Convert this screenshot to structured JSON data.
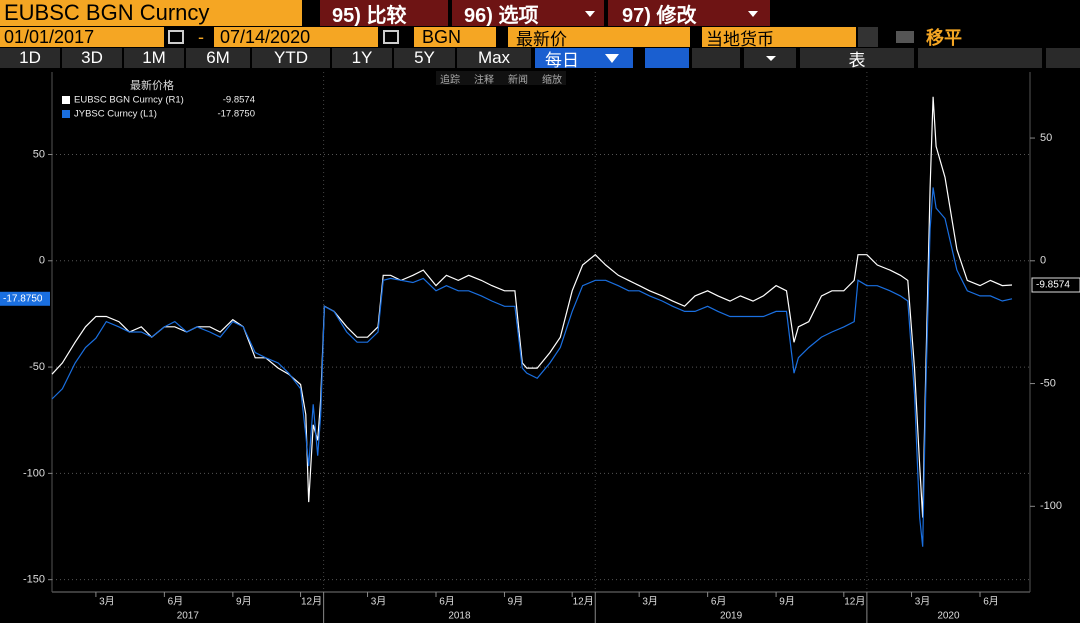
{
  "toolbar": {
    "ticker": "EUBSC BGN Curncy",
    "menu": [
      "95) 比较",
      "96) 选项",
      "97) 修改"
    ],
    "start_date": "01/01/2017",
    "separator": "-",
    "end_date": "07/14/2020",
    "pricing": "BGN",
    "field": "最新价",
    "currency": "当地货币",
    "smooth": "移平",
    "ranges": [
      "1D",
      "3D",
      "1M",
      "6M",
      "YTD",
      "1Y",
      "5Y",
      "Max"
    ],
    "frequency": "每日",
    "table": "表",
    "tools": [
      "追踪",
      "注释",
      "新闻",
      "缩放"
    ]
  },
  "chart_data": {
    "type": "line",
    "legend_title": "最新价格",
    "x": [
      "2017-01-01",
      "2017-01-15",
      "2017-02-01",
      "2017-02-15",
      "2017-03-01",
      "2017-03-15",
      "2017-04-01",
      "2017-04-15",
      "2017-05-01",
      "2017-05-15",
      "2017-06-01",
      "2017-06-15",
      "2017-07-01",
      "2017-07-15",
      "2017-08-01",
      "2017-08-15",
      "2017-09-01",
      "2017-09-15",
      "2017-10-01",
      "2017-10-15",
      "2017-11-01",
      "2017-11-15",
      "2017-12-01",
      "2017-12-08",
      "2017-12-12",
      "2017-12-18",
      "2017-12-24",
      "2017-12-28",
      "2018-01-02",
      "2018-01-15",
      "2018-02-01",
      "2018-02-15",
      "2018-03-01",
      "2018-03-15",
      "2018-03-22",
      "2018-04-01",
      "2018-04-15",
      "2018-05-01",
      "2018-05-15",
      "2018-06-01",
      "2018-06-15",
      "2018-07-01",
      "2018-07-15",
      "2018-08-01",
      "2018-08-15",
      "2018-09-01",
      "2018-09-15",
      "2018-09-25",
      "2018-10-01",
      "2018-10-15",
      "2018-11-01",
      "2018-11-15",
      "2018-12-01",
      "2018-12-15",
      "2019-01-01",
      "2019-01-15",
      "2019-02-01",
      "2019-02-15",
      "2019-03-01",
      "2019-03-15",
      "2019-04-01",
      "2019-04-15",
      "2019-05-01",
      "2019-05-15",
      "2019-06-01",
      "2019-06-15",
      "2019-07-01",
      "2019-07-15",
      "2019-08-01",
      "2019-08-15",
      "2019-09-01",
      "2019-09-15",
      "2019-09-25",
      "2019-10-01",
      "2019-10-15",
      "2019-11-01",
      "2019-11-15",
      "2019-12-01",
      "2019-12-15",
      "2019-12-20",
      "2020-01-01",
      "2020-01-15",
      "2020-02-01",
      "2020-02-15",
      "2020-02-25",
      "2020-03-05",
      "2020-03-12",
      "2020-03-16",
      "2020-03-20",
      "2020-03-26",
      "2020-03-30",
      "2020-04-03",
      "2020-04-15",
      "2020-05-01",
      "2020-05-15",
      "2020-06-01",
      "2020-06-15",
      "2020-07-01",
      "2020-07-14"
    ],
    "xlim": [
      "2017-01-01",
      "2020-07-14"
    ],
    "xticks": [
      {
        "value": "2017-03-01",
        "label": "3月"
      },
      {
        "value": "2017-06-01",
        "label": "6月"
      },
      {
        "value": "2017-09-01",
        "label": "9月"
      },
      {
        "value": "2017-12-01",
        "label": "12月"
      },
      {
        "value": "2018-03-01",
        "label": "3月"
      },
      {
        "value": "2018-06-01",
        "label": "6月"
      },
      {
        "value": "2018-09-01",
        "label": "9月"
      },
      {
        "value": "2018-12-01",
        "label": "12月"
      },
      {
        "value": "2019-03-01",
        "label": "3月"
      },
      {
        "value": "2019-06-01",
        "label": "6月"
      },
      {
        "value": "2019-09-01",
        "label": "9月"
      },
      {
        "value": "2019-12-01",
        "label": "12月"
      },
      {
        "value": "2020-03-01",
        "label": "3月"
      },
      {
        "value": "2020-06-01",
        "label": "6月"
      }
    ],
    "year_labels": [
      "2017",
      "2018",
      "2019",
      "2020"
    ],
    "ylim": [
      -155.8,
      88.8
    ],
    "yticks": [
      50,
      0,
      -50,
      -100,
      -150
    ],
    "y2lim": [
      -134.9,
      76.9
    ],
    "y2ticks": [
      50,
      0,
      -50,
      -100
    ],
    "grid": true,
    "series": [
      {
        "name": "JYBSC Curncy (L1)",
        "color": "#1a6fe0",
        "axis": "y",
        "last_value_label": "-17.8750",
        "values": [
          -65.0,
          -60.2,
          -48.1,
          -40.8,
          -36.4,
          -28.6,
          -31.1,
          -33.5,
          -33.5,
          -35.9,
          -31.1,
          -28.6,
          -33.5,
          -31.1,
          -33.5,
          -35.9,
          -28.6,
          -31.1,
          -43.2,
          -45.6,
          -48.1,
          -52.9,
          -60.2,
          -82.0,
          -96.6,
          -67.5,
          -91.7,
          -72.3,
          -21.4,
          -23.8,
          -33.5,
          -38.3,
          -38.3,
          -33.5,
          -9.2,
          -8.3,
          -9.2,
          -10.2,
          -8.3,
          -14.1,
          -11.7,
          -14.1,
          -14.1,
          -16.5,
          -18.9,
          -21.4,
          -21.4,
          -50.5,
          -52.9,
          -55.3,
          -48.1,
          -40.8,
          -23.8,
          -11.7,
          -9.2,
          -9.2,
          -11.7,
          -14.1,
          -14.1,
          -16.5,
          -18.9,
          -21.4,
          -23.8,
          -23.8,
          -21.4,
          -23.8,
          -26.2,
          -26.2,
          -26.2,
          -26.2,
          -23.8,
          -23.8,
          -52.9,
          -45.6,
          -40.8,
          -35.9,
          -33.5,
          -31.1,
          -28.6,
          -9.2,
          -11.7,
          -11.7,
          -14.1,
          -16.5,
          -18.9,
          -62.6,
          -120.9,
          -134.5,
          -62.6,
          15.0,
          34.5,
          24.8,
          19.9,
          -4.4,
          -14.1,
          -16.5,
          -16.5,
          -18.9,
          -17.875
        ]
      },
      {
        "name": "EUBSC BGN Curncy (R1)",
        "color": "#ffffff",
        "axis": "y2",
        "last_value_label": "-9.8574",
        "values": [
          -46.2,
          -41.6,
          -33.2,
          -26.9,
          -22.7,
          -22.7,
          -24.8,
          -29.0,
          -26.9,
          -31.1,
          -26.9,
          -26.9,
          -29.0,
          -26.9,
          -26.9,
          -29.0,
          -24.0,
          -26.9,
          -39.5,
          -39.5,
          -43.7,
          -46.2,
          -50.4,
          -62.6,
          -98.3,
          -66.8,
          -73.1,
          -56.3,
          -18.5,
          -20.6,
          -26.9,
          -31.1,
          -31.1,
          -26.9,
          -5.9,
          -5.9,
          -8.0,
          -5.9,
          -3.8,
          -10.1,
          -5.9,
          -8.0,
          -5.9,
          -8.0,
          -10.1,
          -12.2,
          -12.2,
          -41.6,
          -43.7,
          -43.7,
          -37.4,
          -31.1,
          -12.2,
          -1.7,
          2.5,
          -1.7,
          -5.9,
          -8.0,
          -10.1,
          -12.2,
          -14.3,
          -16.4,
          -18.5,
          -14.3,
          -12.2,
          -14.3,
          -16.4,
          -14.3,
          -16.4,
          -14.3,
          -10.1,
          -12.2,
          -33.2,
          -26.9,
          -24.8,
          -14.3,
          -12.2,
          -12.2,
          -8.0,
          2.5,
          2.5,
          -1.7,
          -3.8,
          -5.9,
          -8.0,
          -43.7,
          -83.6,
          -104.6,
          -46.2,
          29.8,
          66.8,
          46.6,
          34.0,
          4.6,
          -8.0,
          -10.1,
          -8.0,
          -10.1,
          -9.8574
        ]
      }
    ]
  }
}
